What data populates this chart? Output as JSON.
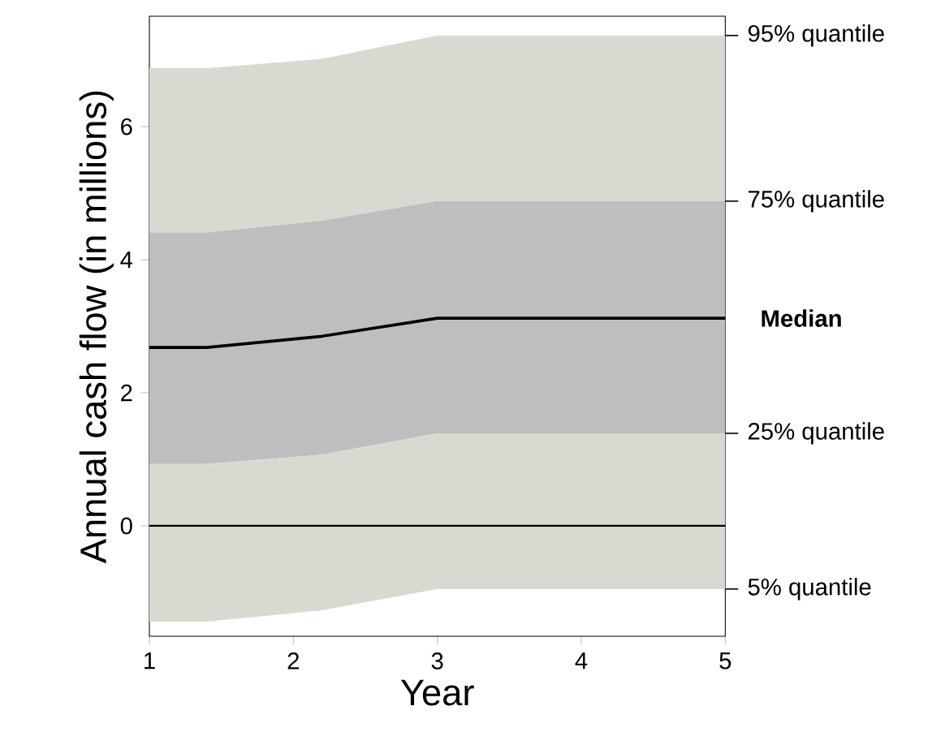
{
  "chart_data": {
    "type": "line",
    "xlabel": "Year",
    "ylabel": "Annual cash flow (in millions)",
    "x": [
      1,
      1.4,
      2.2,
      3,
      5
    ],
    "series": [
      {
        "type": "area",
        "color": "#d9d9d2",
        "values": [
          null,
          null,
          null,
          null,
          null
        ],
        "lower": [
          4.41,
          4.41,
          4.59,
          4.88,
          4.88
        ],
        "upper": [
          6.88,
          6.88,
          7.02,
          7.37,
          7.37
        ]
      },
      {
        "type": "area",
        "color": "#bebebe",
        "values": [
          null,
          null,
          null,
          null,
          null
        ],
        "lower": [
          0.93,
          0.93,
          1.07,
          1.39,
          1.39
        ],
        "upper": [
          4.41,
          4.41,
          4.59,
          4.88,
          4.88
        ]
      },
      {
        "type": "area",
        "color": "#d9d9d2",
        "values": [
          null,
          null,
          null,
          null,
          null
        ],
        "lower": [
          -1.44,
          -1.44,
          -1.27,
          -0.95,
          -0.95
        ],
        "upper": [
          0.93,
          0.93,
          1.07,
          1.39,
          1.39
        ]
      },
      {
        "name": "**Median**",
        "color": "#000000",
        "values": [
          2.68,
          2.68,
          2.85,
          3.12,
          3.12
        ]
      }
    ],
    "annotations": [
      "95% quantile",
      "75% quantile",
      "25% quantile",
      "5% quantile"
    ],
    "ref_lines": [
      {
        "axis": "y",
        "value": 0,
        "color": "#000000"
      }
    ],
    "xlim": [
      1,
      5
    ],
    "ylim": [
      -1.66,
      7.66
    ],
    "xticks": [
      1,
      2,
      3,
      4,
      5
    ],
    "yticks": [
      0,
      2,
      4,
      6
    ]
  }
}
